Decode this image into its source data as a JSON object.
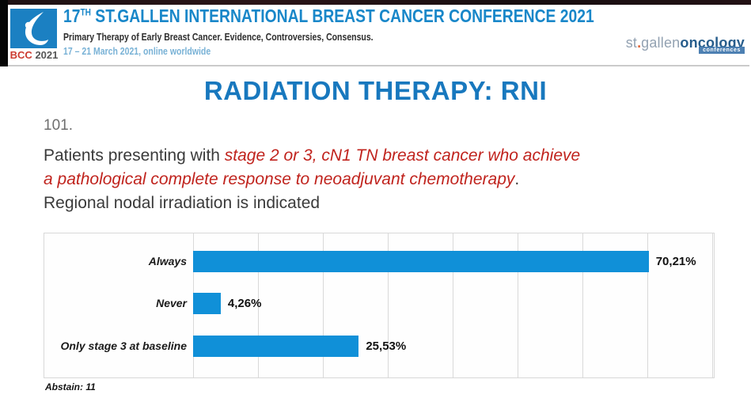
{
  "header": {
    "badge_bcc": "BCC",
    "badge_year": "2021",
    "title_prefix": "17",
    "title_sup": "TH",
    "title_rest": " ST.GALLEN INTERNATIONAL BREAST CANCER CONFERENCE 2021",
    "subtitle": "Primary Therapy of Early Breast Cancer. Evidence, Controversies, Consensus.",
    "dates": "17 – 21 March 2021, online worldwide",
    "logo_st": "st",
    "logo_dot": ".",
    "logo_gallen": "gallen",
    "logo_oncology": "oncology",
    "logo_tag": "conferences"
  },
  "slide": {
    "title": "RADIATION THERAPY: RNI",
    "question_number": "101.",
    "q_intro": "Patients presenting with ",
    "q_red_line1": "stage 2 or 3, cN1 TN breast cancer who achieve",
    "q_red_line2": "a pathological complete response to neoadjuvant chemotherapy",
    "q_period": ".",
    "q_tail": "Regional nodal irradiation is indicated",
    "abstain": "Abstain: 11"
  },
  "chart_data": {
    "type": "bar",
    "orientation": "horizontal",
    "title": "",
    "categories": [
      "Always",
      "Never",
      "Only stage 3 at baseline"
    ],
    "values": [
      70.21,
      4.26,
      25.53
    ],
    "value_labels": [
      "70,21%",
      "4,26%",
      "25,53%"
    ],
    "xlabel": "",
    "ylabel": "",
    "xlim": [
      0,
      80
    ],
    "gridline_step": 10,
    "grid": true,
    "legend": false,
    "bar_color": "#1090d8"
  },
  "colors": {
    "header_blue": "#1987c9",
    "title_blue": "#1878be",
    "question_red": "#c0231d",
    "dark_text": "#3a3a3a",
    "number_gray": "#6f6f6f",
    "date_blue": "#79b2d6",
    "logo_square_blue": "#1b80c2",
    "bcc_red": "#cc3b31",
    "logo_gray_blue": "#93a2b2",
    "logo_dark_blue": "#275d8c",
    "tag_bg": "#4d80b2",
    "bar_blue": "#1090d8"
  }
}
